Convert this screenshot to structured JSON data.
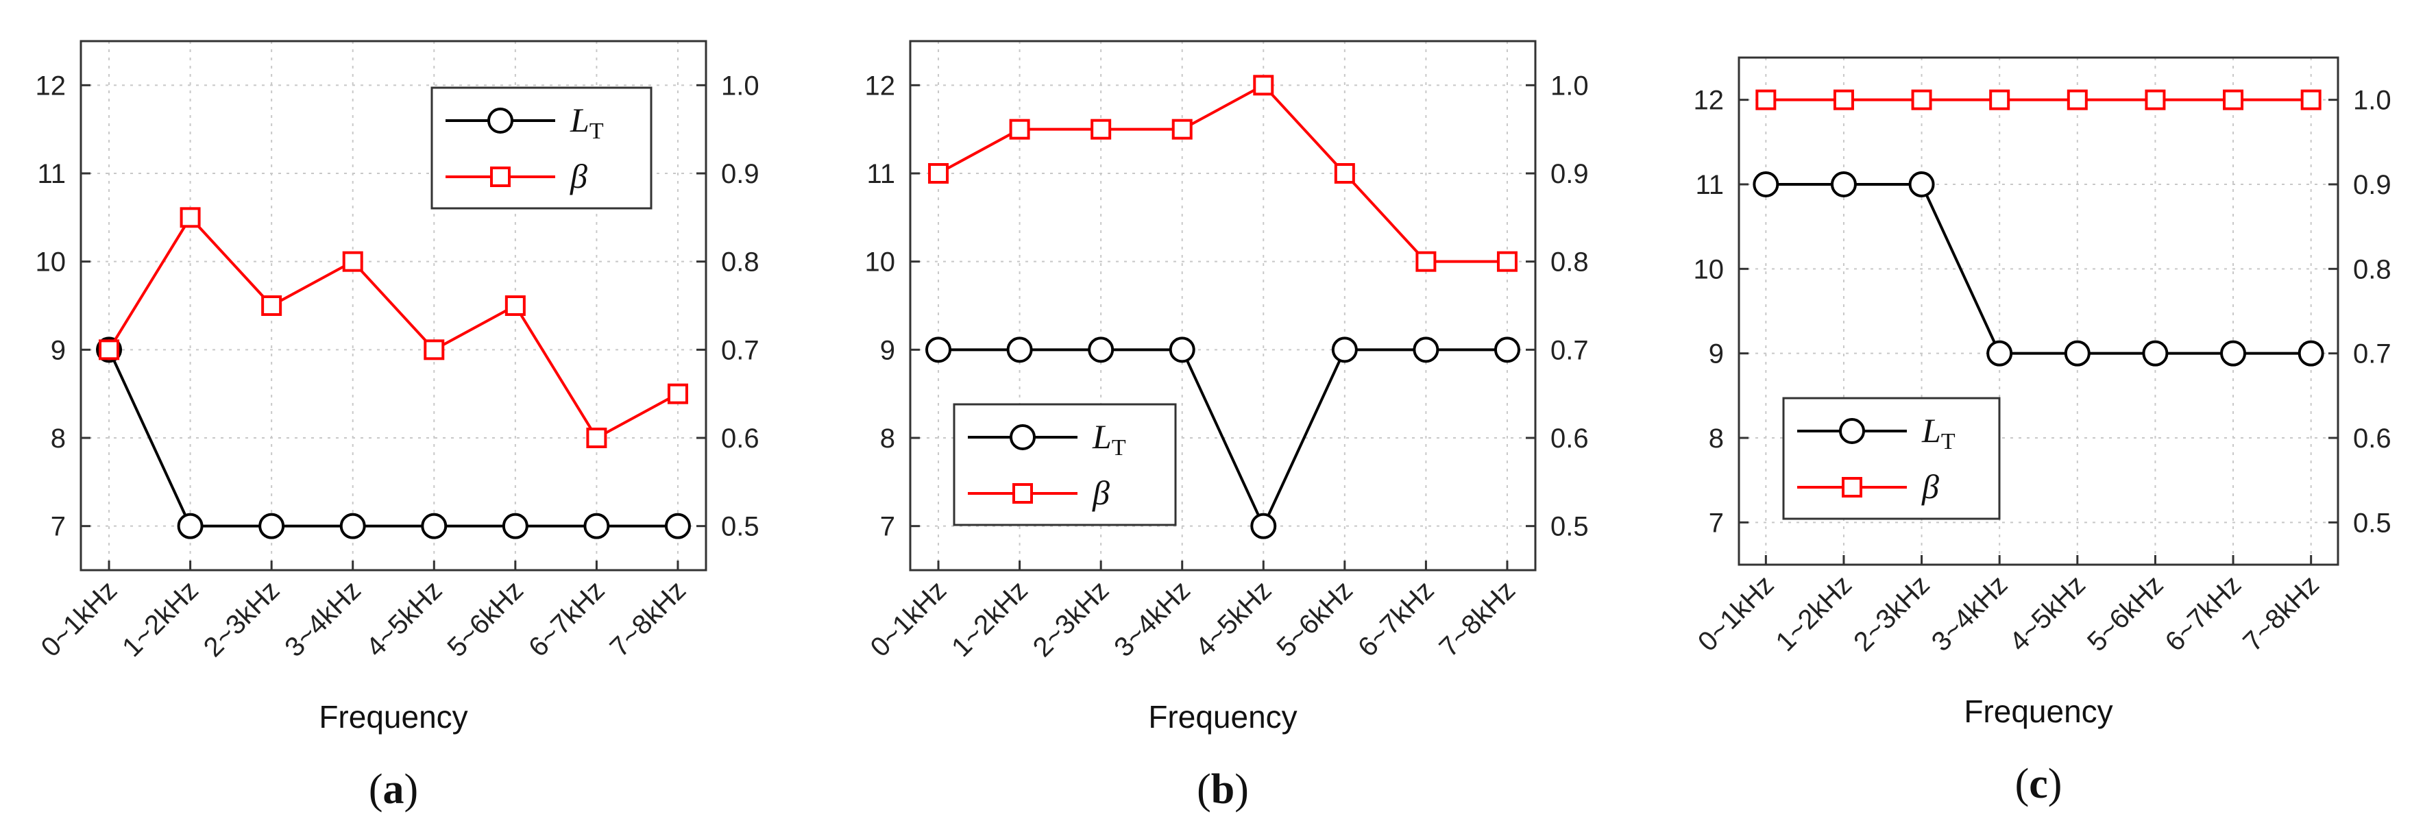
{
  "figure": {
    "series_style": {
      "LT_color": "#000000",
      "beta_color": "#ff0000",
      "LT_marker": "circle",
      "beta_marker": "square"
    }
  },
  "chart_data": [
    {
      "type": "line",
      "title": "",
      "caption_letter": "a",
      "xlabel": "Frequency",
      "ylabel_left": "",
      "ylabel_right": "",
      "categories": [
        "0~1kHz",
        "1~2kHz",
        "2~3kHz",
        "3~4kHz",
        "4~5kHz",
        "5~6kHz",
        "6~7kHz",
        "7~8kHz"
      ],
      "ylim_left": [
        6.5,
        12.5
      ],
      "yticks_left": [
        "7",
        "8",
        "9",
        "10",
        "11",
        "12"
      ],
      "ylim_right": [
        0.45,
        1.05
      ],
      "yticks_right": [
        "0.5",
        "0.6",
        "0.7",
        "0.8",
        "0.9",
        "1.0"
      ],
      "grid": true,
      "legend_position": "top-right",
      "series": [
        {
          "name": "L",
          "name_sub": "T",
          "axis": "left",
          "values": [
            9,
            7,
            7,
            7,
            7,
            7,
            7,
            7
          ]
        },
        {
          "name": "β",
          "axis": "right",
          "values": [
            0.7,
            0.85,
            0.75,
            0.8,
            0.7,
            0.75,
            0.6,
            0.65
          ]
        }
      ]
    },
    {
      "type": "line",
      "title": "",
      "caption_letter": "b",
      "xlabel": "Frequency",
      "ylabel_left": "",
      "ylabel_right": "",
      "categories": [
        "0~1kHz",
        "1~2kHz",
        "2~3kHz",
        "3~4kHz",
        "4~5kHz",
        "5~6kHz",
        "6~7kHz",
        "7~8kHz"
      ],
      "ylim_left": [
        6.5,
        12.5
      ],
      "yticks_left": [
        "7",
        "8",
        "9",
        "10",
        "11",
        "12"
      ],
      "ylim_right": [
        0.45,
        1.05
      ],
      "yticks_right": [
        "0.5",
        "0.6",
        "0.7",
        "0.8",
        "0.9",
        "1.0"
      ],
      "grid": true,
      "legend_position": "bottom-left",
      "series": [
        {
          "name": "L",
          "name_sub": "T",
          "axis": "left",
          "values": [
            9,
            9,
            9,
            9,
            7,
            9,
            9,
            9
          ]
        },
        {
          "name": "β",
          "axis": "right",
          "values": [
            0.9,
            0.95,
            0.95,
            0.95,
            1.0,
            0.9,
            0.8,
            0.8
          ]
        }
      ]
    },
    {
      "type": "line",
      "title": "",
      "caption_letter": "c",
      "xlabel": "Frequency",
      "ylabel_left": "",
      "ylabel_right": "",
      "categories": [
        "0~1kHz",
        "1~2kHz",
        "2~3kHz",
        "3~4kHz",
        "4~5kHz",
        "5~6kHz",
        "6~7kHz",
        "7~8kHz"
      ],
      "ylim_left": [
        6.5,
        12.5
      ],
      "yticks_left": [
        "7",
        "8",
        "9",
        "10",
        "11",
        "12"
      ],
      "ylim_right": [
        0.45,
        1.05
      ],
      "yticks_right": [
        "0.5",
        "0.6",
        "0.7",
        "0.8",
        "0.9",
        "1.0"
      ],
      "grid": true,
      "legend_position": "bottom-left",
      "series": [
        {
          "name": "L",
          "name_sub": "T",
          "axis": "left",
          "values": [
            11,
            11,
            11,
            9,
            9,
            9,
            9,
            9
          ]
        },
        {
          "name": "β",
          "axis": "right",
          "values": [
            1.0,
            1.0,
            1.0,
            1.0,
            1.0,
            1.0,
            1.0,
            1.0
          ]
        }
      ]
    }
  ]
}
